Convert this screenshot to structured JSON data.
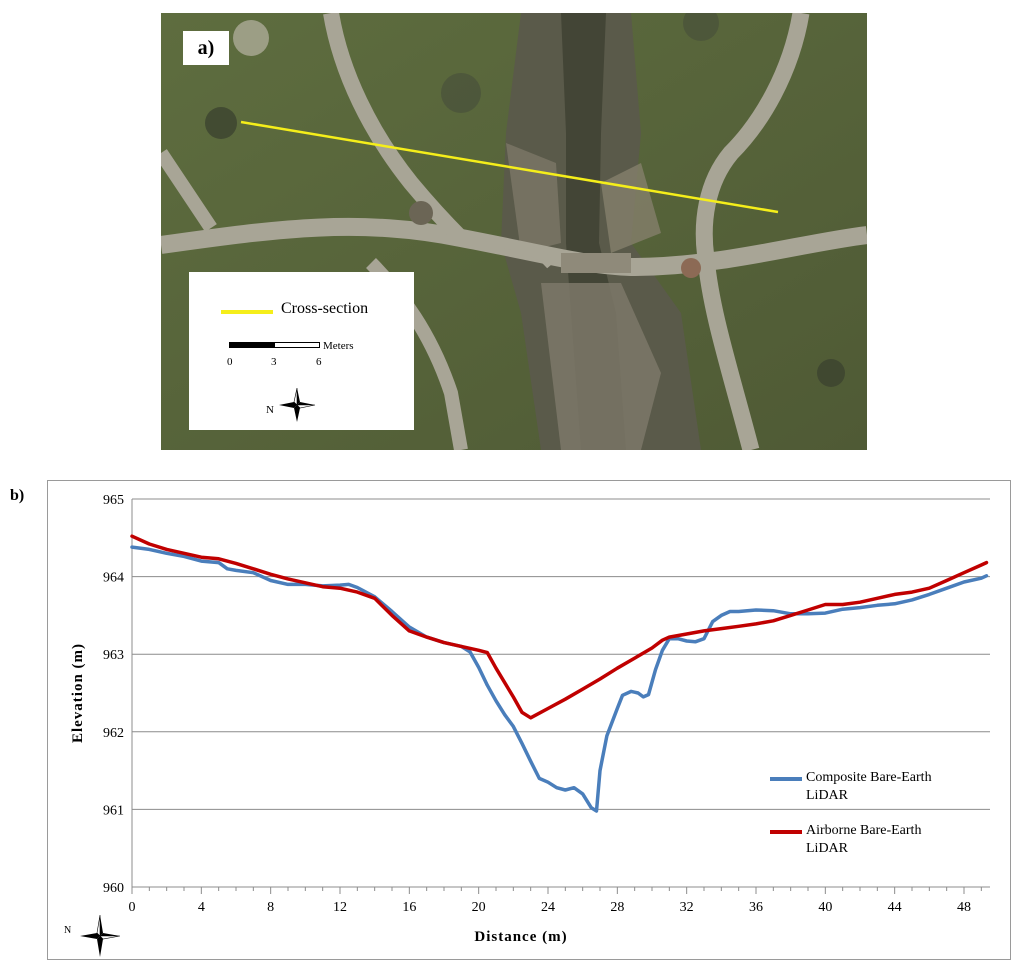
{
  "panel_a": {
    "label": "a)",
    "legend": {
      "line_label": "Cross-section",
      "line_color": "#f5ee1a",
      "scale_unit": "Meters",
      "scale_ticks": [
        "0",
        "3",
        "6"
      ],
      "north_letter": "N"
    }
  },
  "panel_b": {
    "label": "b)",
    "north_letter": "N"
  },
  "chart_data": {
    "type": "line",
    "title": "",
    "xlabel": "Distance (m)",
    "ylabel": "Elevation (m)",
    "xlim": [
      0,
      49.5
    ],
    "ylim": [
      960,
      965
    ],
    "x_ticks": [
      0,
      4,
      8,
      12,
      16,
      20,
      24,
      28,
      32,
      36,
      40,
      44,
      48
    ],
    "y_ticks": [
      960,
      961,
      962,
      963,
      964,
      965
    ],
    "grid": "horizontal",
    "legend_position": "right",
    "series": [
      {
        "name": "Composite Bare-Earth LiDAR",
        "color": "#4a7ebb",
        "points": [
          [
            0,
            964.38
          ],
          [
            1,
            964.35
          ],
          [
            2,
            964.3
          ],
          [
            3,
            964.26
          ],
          [
            4,
            964.2
          ],
          [
            5,
            964.18
          ],
          [
            5.5,
            964.1
          ],
          [
            6,
            964.08
          ],
          [
            7,
            964.05
          ],
          [
            8,
            963.95
          ],
          [
            9,
            963.9
          ],
          [
            10,
            963.9
          ],
          [
            11,
            963.88
          ],
          [
            12,
            963.89
          ],
          [
            12.5,
            963.9
          ],
          [
            13,
            963.86
          ],
          [
            14,
            963.74
          ],
          [
            15,
            963.55
          ],
          [
            16,
            963.35
          ],
          [
            17,
            963.22
          ],
          [
            18,
            963.15
          ],
          [
            19,
            963.1
          ],
          [
            19.5,
            963.03
          ],
          [
            20,
            962.83
          ],
          [
            20.5,
            962.6
          ],
          [
            21,
            962.4
          ],
          [
            21.5,
            962.22
          ],
          [
            22,
            962.07
          ],
          [
            22.5,
            961.85
          ],
          [
            23,
            961.62
          ],
          [
            23.5,
            961.4
          ],
          [
            24,
            961.35
          ],
          [
            24.5,
            961.28
          ],
          [
            25,
            961.25
          ],
          [
            25.5,
            961.28
          ],
          [
            26,
            961.2
          ],
          [
            26.5,
            961.02
          ],
          [
            26.8,
            960.98
          ],
          [
            27,
            961.5
          ],
          [
            27.4,
            961.95
          ],
          [
            28,
            962.3
          ],
          [
            28.3,
            962.47
          ],
          [
            28.8,
            962.52
          ],
          [
            29.2,
            962.5
          ],
          [
            29.5,
            962.45
          ],
          [
            29.8,
            962.48
          ],
          [
            30.2,
            962.8
          ],
          [
            30.6,
            963.05
          ],
          [
            31,
            963.2
          ],
          [
            31.5,
            963.2
          ],
          [
            32,
            963.17
          ],
          [
            32.5,
            963.16
          ],
          [
            33,
            963.2
          ],
          [
            33.5,
            963.42
          ],
          [
            34,
            963.5
          ],
          [
            34.5,
            963.55
          ],
          [
            35,
            963.55
          ],
          [
            36,
            963.57
          ],
          [
            37,
            963.56
          ],
          [
            38,
            963.52
          ],
          [
            39,
            963.52
          ],
          [
            40,
            963.53
          ],
          [
            41,
            963.58
          ],
          [
            42,
            963.6
          ],
          [
            43,
            963.63
          ],
          [
            44,
            963.65
          ],
          [
            45,
            963.7
          ],
          [
            46,
            963.77
          ],
          [
            47,
            963.85
          ],
          [
            48,
            963.93
          ],
          [
            49,
            963.98
          ],
          [
            49.3,
            964.01
          ]
        ]
      },
      {
        "name": "Airborne Bare-Earth LiDAR",
        "color": "#c00000",
        "points": [
          [
            0,
            964.52
          ],
          [
            1,
            964.42
          ],
          [
            2,
            964.35
          ],
          [
            3,
            964.3
          ],
          [
            4,
            964.25
          ],
          [
            5,
            964.23
          ],
          [
            6,
            964.17
          ],
          [
            7,
            964.1
          ],
          [
            8,
            964.03
          ],
          [
            9,
            963.97
          ],
          [
            10,
            963.92
          ],
          [
            11,
            963.87
          ],
          [
            12,
            963.85
          ],
          [
            13,
            963.8
          ],
          [
            14,
            963.72
          ],
          [
            15,
            963.5
          ],
          [
            16,
            963.3
          ],
          [
            17,
            963.22
          ],
          [
            18,
            963.15
          ],
          [
            19,
            963.1
          ],
          [
            20,
            963.05
          ],
          [
            20.5,
            963.02
          ],
          [
            21,
            962.82
          ],
          [
            22,
            962.45
          ],
          [
            22.5,
            962.25
          ],
          [
            23,
            962.18
          ],
          [
            24,
            962.3
          ],
          [
            25,
            962.42
          ],
          [
            26,
            962.55
          ],
          [
            27,
            962.68
          ],
          [
            28,
            962.82
          ],
          [
            29,
            962.95
          ],
          [
            30,
            963.08
          ],
          [
            30.6,
            963.18
          ],
          [
            31,
            963.22
          ],
          [
            32,
            963.26
          ],
          [
            33,
            963.3
          ],
          [
            34,
            963.33
          ],
          [
            35,
            963.36
          ],
          [
            36,
            963.39
          ],
          [
            37,
            963.43
          ],
          [
            38,
            963.5
          ],
          [
            39,
            963.57
          ],
          [
            40,
            963.64
          ],
          [
            41,
            963.64
          ],
          [
            42,
            963.67
          ],
          [
            43,
            963.72
          ],
          [
            44,
            963.77
          ],
          [
            45,
            963.8
          ],
          [
            46,
            963.85
          ],
          [
            47,
            963.95
          ],
          [
            48,
            964.05
          ],
          [
            49,
            964.15
          ],
          [
            49.3,
            964.18
          ]
        ]
      }
    ]
  }
}
